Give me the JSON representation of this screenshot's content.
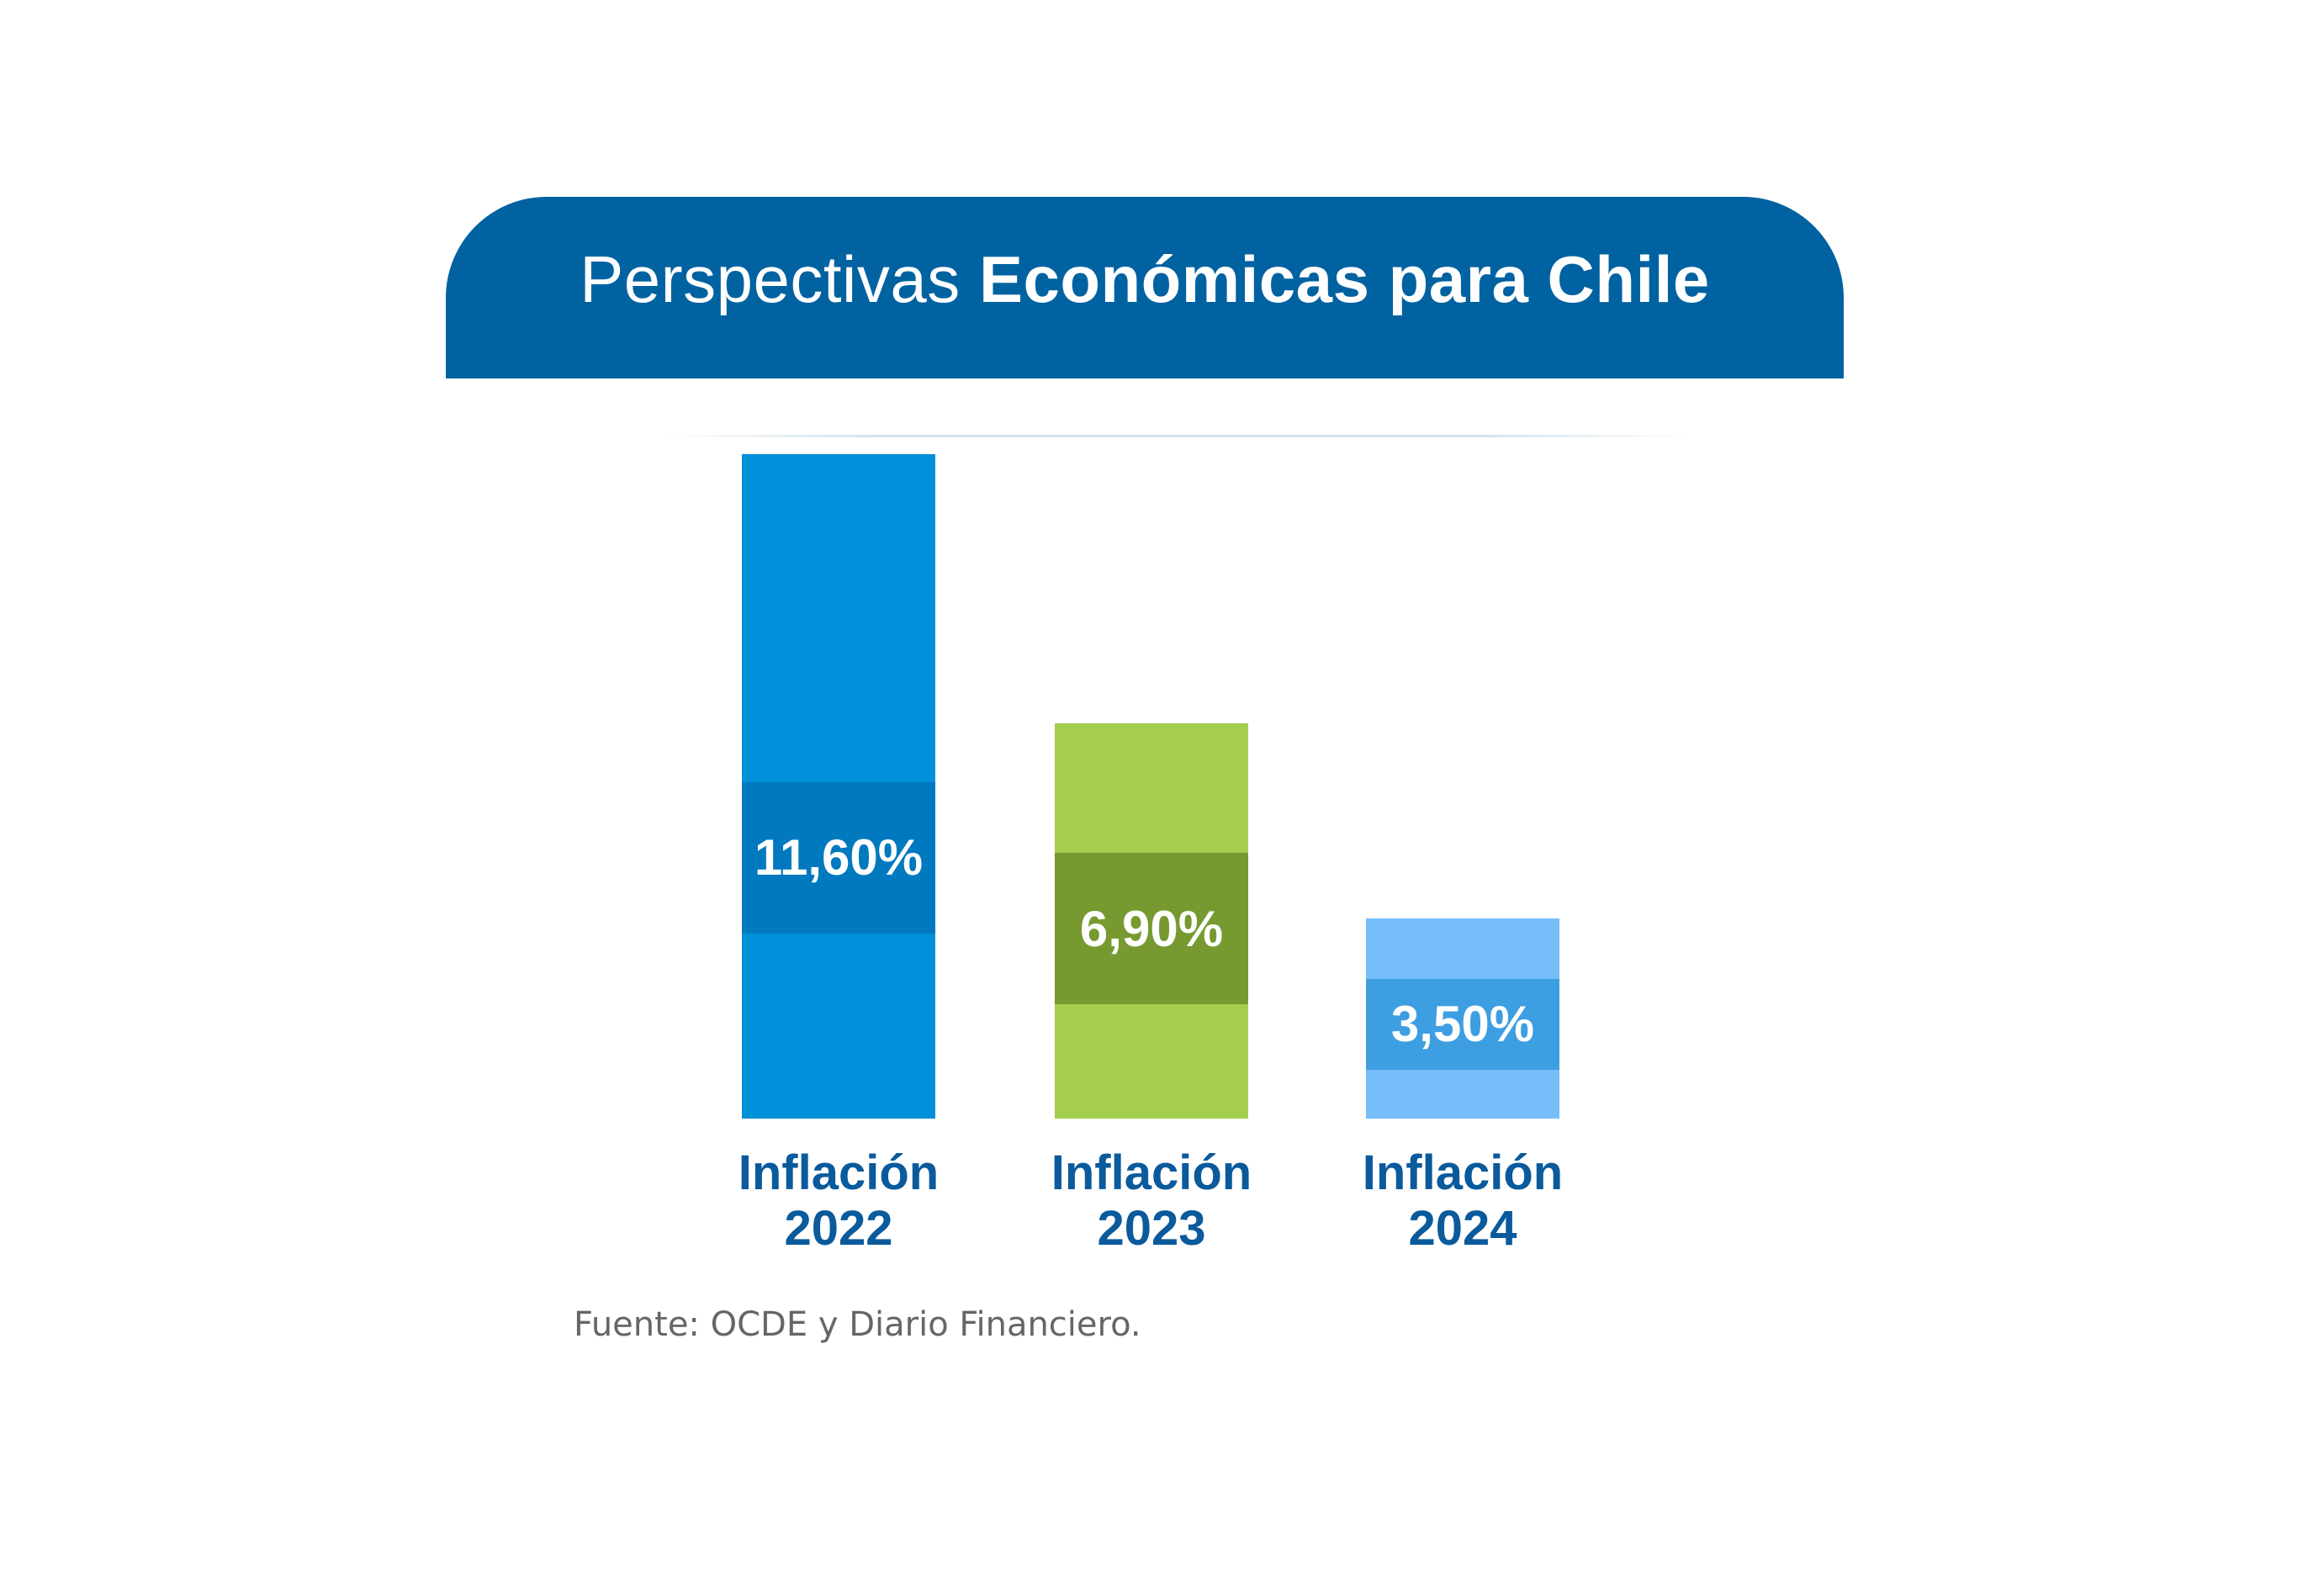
{
  "title": {
    "light": "Perspectivas",
    "bold": "Económicas para Chile"
  },
  "source": "Fuente: OCDE y Diario Financiero.",
  "colors": {
    "header": "#0062a1",
    "category_text": "#0a5a9c"
  },
  "chart_data": {
    "type": "bar",
    "categories": [
      [
        "Inflación",
        "2022"
      ],
      [
        "Inflación",
        "2023"
      ],
      [
        "Inflación",
        "2024"
      ]
    ],
    "values": [
      11.6,
      6.9,
      3.5
    ],
    "value_labels": [
      "11,60%",
      "6,90%",
      "3,50%"
    ],
    "unit": "%",
    "colors": [
      {
        "bar": "#008fd9",
        "band": "#0079bf"
      },
      {
        "bar": "#a5ce4f",
        "band": "#769a30"
      },
      {
        "bar": "#76befa",
        "band": "#3e9ee2"
      }
    ],
    "grid": false,
    "legend": "none"
  }
}
